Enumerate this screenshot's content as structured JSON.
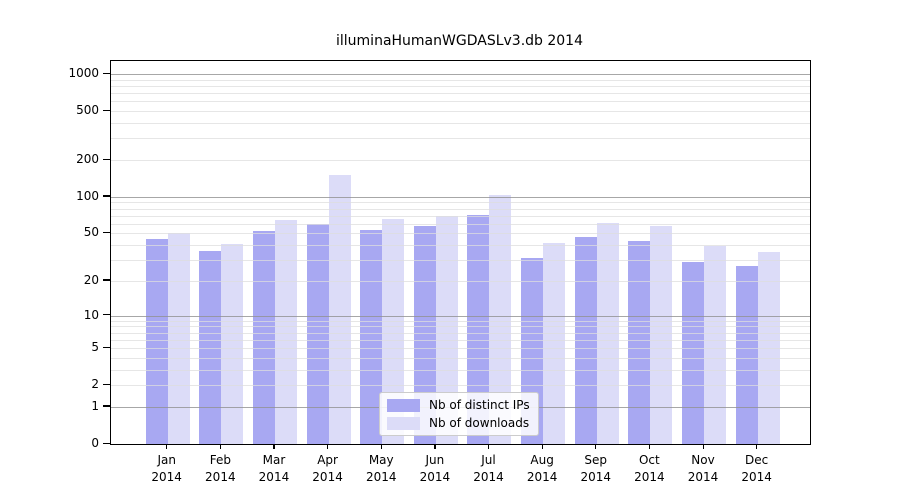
{
  "title": "illuminaHumanWGDASLv3.db 2014",
  "chart_data": {
    "type": "bar",
    "title": "illuminaHumanWGDASLv3.db 2014",
    "categories": [
      "Jan",
      "Feb",
      "Mar",
      "Apr",
      "May",
      "Jun",
      "Jul",
      "Aug",
      "Sep",
      "Oct",
      "Nov",
      "Dec"
    ],
    "year_label": "2014",
    "series": [
      {
        "name": "Nb of distinct IPs",
        "color": "#a8a8f2",
        "values": [
          45,
          36,
          52,
          60,
          53,
          58,
          71,
          31,
          47,
          43,
          29,
          27
        ]
      },
      {
        "name": "Nb of downloads",
        "color": "#dcdcf8",
        "values": [
          50,
          41,
          64,
          150,
          66,
          70,
          103,
          42,
          61,
          58,
          39,
          35
        ]
      }
    ],
    "xlabel": "",
    "ylabel": "",
    "yscale": "log1p",
    "yticks": [
      0,
      1,
      2,
      5,
      10,
      20,
      50,
      100,
      200,
      500,
      1000
    ],
    "major_gridlines": [
      1,
      10,
      100,
      1000
    ],
    "minor_gridlines": [
      2,
      3,
      4,
      5,
      6,
      7,
      8,
      9,
      20,
      30,
      40,
      50,
      60,
      70,
      80,
      90,
      200,
      300,
      400,
      500,
      600,
      700,
      800,
      900
    ],
    "ylim": [
      0,
      1270
    ],
    "grid": true,
    "legend_position": "bottom-center"
  },
  "colors": {
    "distinct_ips_bar": "#a8a8f2",
    "downloads_bar": "#dcdcf8",
    "axis": "#000000",
    "minor_grid": "#e6e6e6",
    "major_grid": "#a3a3a3",
    "legend_border": "#cccccc",
    "background": "#ffffff"
  }
}
